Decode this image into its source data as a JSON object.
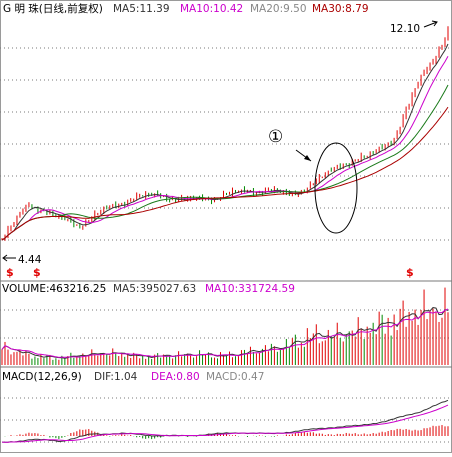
{
  "header": {
    "stock_label": "G 明  珠(日线,前复权)",
    "ma5": "MA5:11.39",
    "ma10": "MA10:10.42",
    "ma20": "MA20:9.50",
    "ma30": "MA30:8.79"
  },
  "volume_header": {
    "volume": "VOLUME:463216.25",
    "ma5": "MA5:395027.63",
    "ma10": "MA10:331724.59"
  },
  "macd_header": {
    "macd": "MACD(12,26,9)",
    "dif": "DIF:1.04",
    "dea": "DEA:0.80",
    "macd_value": "MACD:0.47"
  },
  "annotations": {
    "high_label": "12.10",
    "low_label": "4.44",
    "circle_marker": "①"
  },
  "colors": {
    "up": "#e00000",
    "down": "#008800",
    "ma5": "#333333",
    "ma10": "#cc00cc",
    "ma20": "#1a7a1a",
    "ma30": "#aa0000",
    "grid": "#7a7a7a",
    "signal": "#e00000"
  },
  "chart_data": {
    "type": "line",
    "price_range": [
      4.0,
      12.5
    ],
    "high": 12.1,
    "low": 4.44,
    "signal_markers": [
      "$",
      "$",
      "$"
    ],
    "price_anchors": [
      4.44,
      5.8,
      5.3,
      5.0,
      5.6,
      6.0,
      6.1,
      5.9,
      6.0,
      6.2,
      6.3,
      6.1,
      6.6,
      7.3,
      7.5,
      8.3,
      10.5,
      12.1
    ],
    "volume_anchors": [
      150,
      80,
      60,
      90,
      100,
      70,
      80,
      90,
      80,
      120,
      150,
      250,
      250,
      300,
      380,
      450,
      460
    ],
    "macd_anchors": [
      -0.2,
      -0.1,
      -0.15,
      0.05,
      0.08,
      0.02,
      0.0,
      0.05,
      0.1,
      0.06,
      0.15,
      0.25,
      0.3,
      0.45,
      0.7,
      1.04
    ]
  }
}
